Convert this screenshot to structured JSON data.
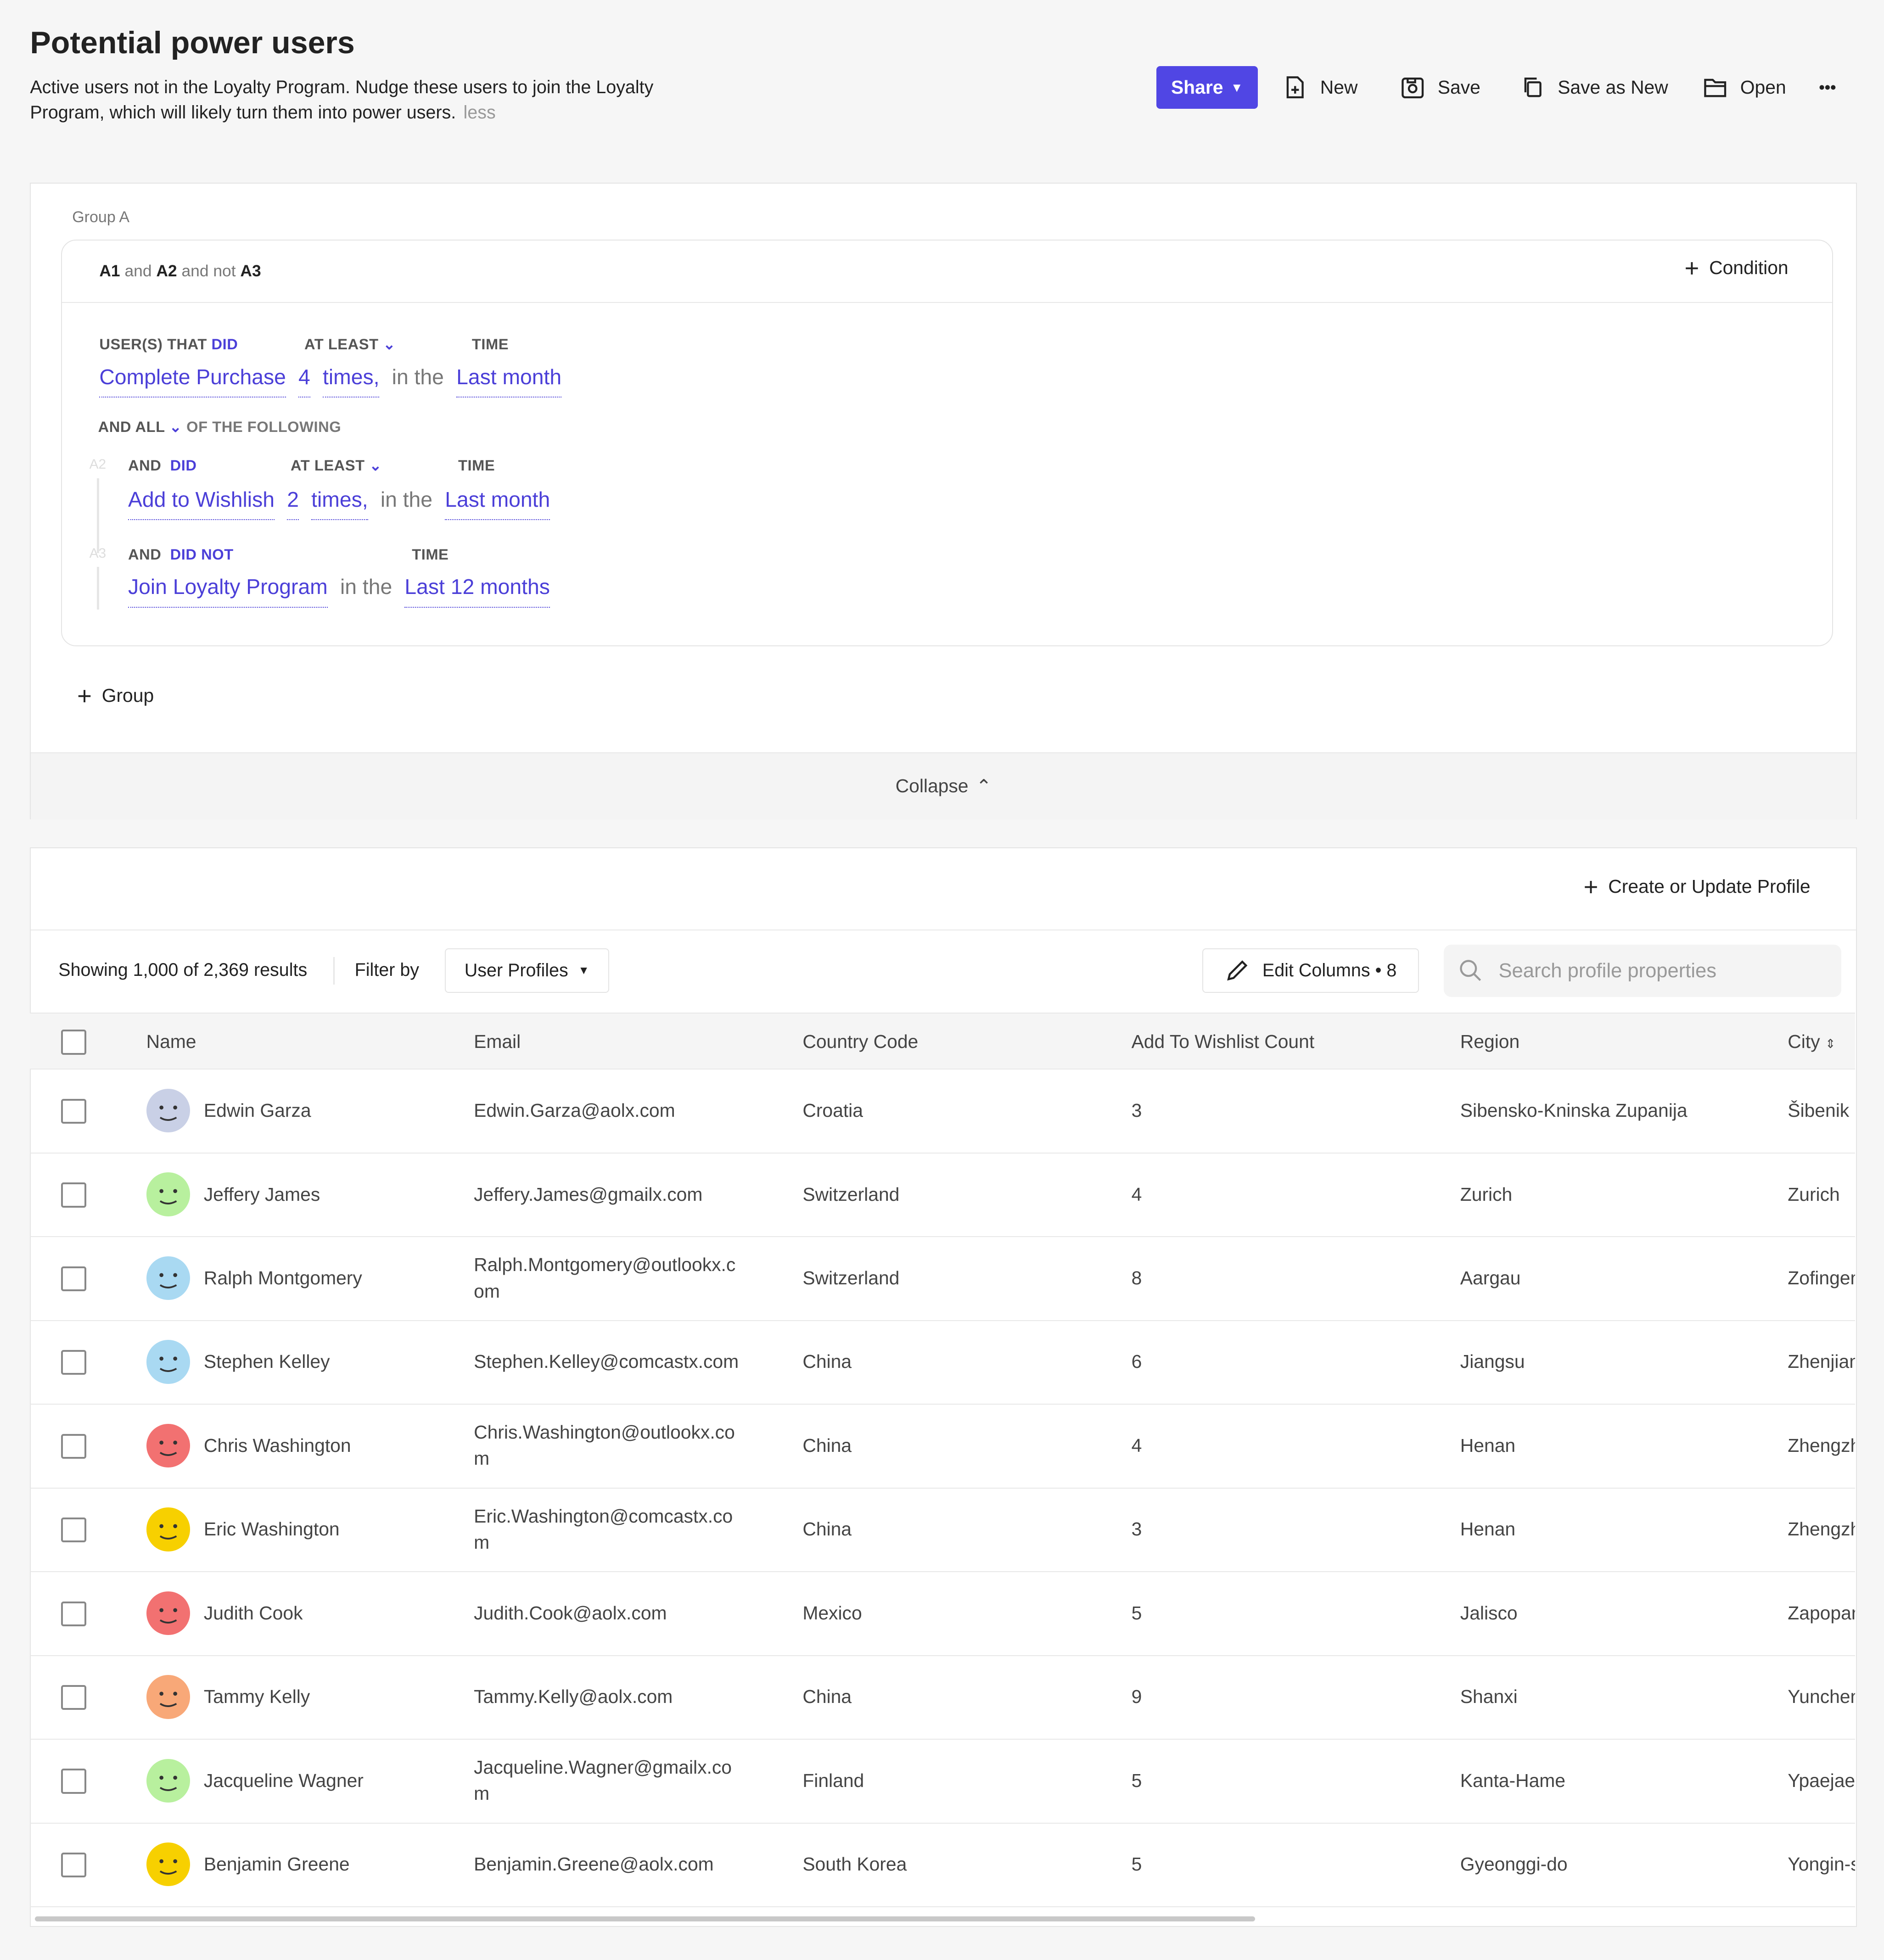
{
  "header": {
    "title": "Potential power users",
    "description": "Active users not in the Loyalty Program. Nudge these users to join the Loyalty Program, which will likely turn them into power users.",
    "less_link": "less"
  },
  "toolbar": {
    "share": "Share",
    "new": "New",
    "save": "Save",
    "save_as_new": "Save as New",
    "open": "Open",
    "more": "•••",
    "accent": "#5046e4"
  },
  "query": {
    "group_label": "Group A",
    "expression": {
      "a1": "A1",
      "and1": "and",
      "a2": "A2",
      "and_not": "and not",
      "a3": "A3"
    },
    "add_condition": "Condition",
    "a1": {
      "label_prefix": "USER(S) THAT",
      "label_did": "DID",
      "freq_label": "AT LEAST",
      "time_label": "TIME",
      "event": "Complete Purchase",
      "count": "4",
      "times": "times,",
      "in_the": "in the",
      "period": "Last month"
    },
    "combinator": {
      "prefix": "AND ALL",
      "suffix": "OF THE FOLLOWING"
    },
    "a2": {
      "id": "A2",
      "and": "AND",
      "did": "DID",
      "freq_label": "AT LEAST",
      "time_label": "TIME",
      "event": "Add to Wishlish",
      "count": "2",
      "times": "times,",
      "in_the": "in the",
      "period": "Last month"
    },
    "a3": {
      "id": "A3",
      "and": "AND",
      "did": "DID NOT",
      "time_label": "TIME",
      "event": "Join Loyalty Program",
      "in_the": "in the",
      "period": "Last 12 months"
    },
    "add_group": "Group",
    "collapse": "Collapse"
  },
  "results": {
    "create_profile": "Create or Update Profile",
    "showing": "Showing 1,000 of 2,369 results",
    "filter_by": "Filter by",
    "filter_value": "User Profiles",
    "edit_columns": "Edit Columns • 8",
    "search_placeholder": "Search profile properties",
    "columns": [
      "Name",
      "Email",
      "Country Code",
      "Add To Wishlist Count",
      "Region",
      "City"
    ],
    "rows": [
      {
        "name": "Edwin Garza",
        "email": "Edwin.Garza@aolx.com",
        "country": "Croatia",
        "wishlist": "3",
        "region": "Sibensko-Kninska Zupanija",
        "city": "Šibenik",
        "avatar": "#c9d0e6"
      },
      {
        "name": "Jeffery James",
        "email": "Jeffery.James@gmailx.com",
        "country": "Switzerland",
        "wishlist": "4",
        "region": "Zurich",
        "city": "Zurich",
        "avatar": "#b8f09e"
      },
      {
        "name": "Ralph Montgomery",
        "email": "Ralph.Montgomery@outlookx.com",
        "country": "Switzerland",
        "wishlist": "8",
        "region": "Aargau",
        "city": "Zofingen",
        "avatar": "#a9d9f2"
      },
      {
        "name": "Stephen Kelley",
        "email": "Stephen.Kelley@comcastx.com",
        "country": "China",
        "wishlist": "6",
        "region": "Jiangsu",
        "city": "Zhenjiang",
        "avatar": "#a9d9f2"
      },
      {
        "name": "Chris Washington",
        "email": "Chris.Washington@outlookx.com",
        "country": "China",
        "wishlist": "4",
        "region": "Henan",
        "city": "Zhengzhou",
        "avatar": "#f27171"
      },
      {
        "name": "Eric Washington",
        "email": "Eric.Washington@comcastx.com",
        "country": "China",
        "wishlist": "3",
        "region": "Henan",
        "city": "Zhengzhou",
        "avatar": "#f7d000"
      },
      {
        "name": "Judith Cook",
        "email": "Judith.Cook@aolx.com",
        "country": "Mexico",
        "wishlist": "5",
        "region": "Jalisco",
        "city": "Zapopan",
        "avatar": "#f27171"
      },
      {
        "name": "Tammy Kelly",
        "email": "Tammy.Kelly@aolx.com",
        "country": "China",
        "wishlist": "9",
        "region": "Shanxi",
        "city": "Yuncheng",
        "avatar": "#f8a878"
      },
      {
        "name": "Jacqueline Wagner",
        "email": "Jacqueline.Wagner@gmailx.com",
        "country": "Finland",
        "wishlist": "5",
        "region": "Kanta-Hame",
        "city": "Ypaejae",
        "avatar": "#b8f09e"
      },
      {
        "name": "Benjamin Greene",
        "email": "Benjamin.Greene@aolx.com",
        "country": "South Korea",
        "wishlist": "5",
        "region": "Gyeonggi-do",
        "city": "Yongin-si",
        "avatar": "#f7d000"
      }
    ]
  }
}
